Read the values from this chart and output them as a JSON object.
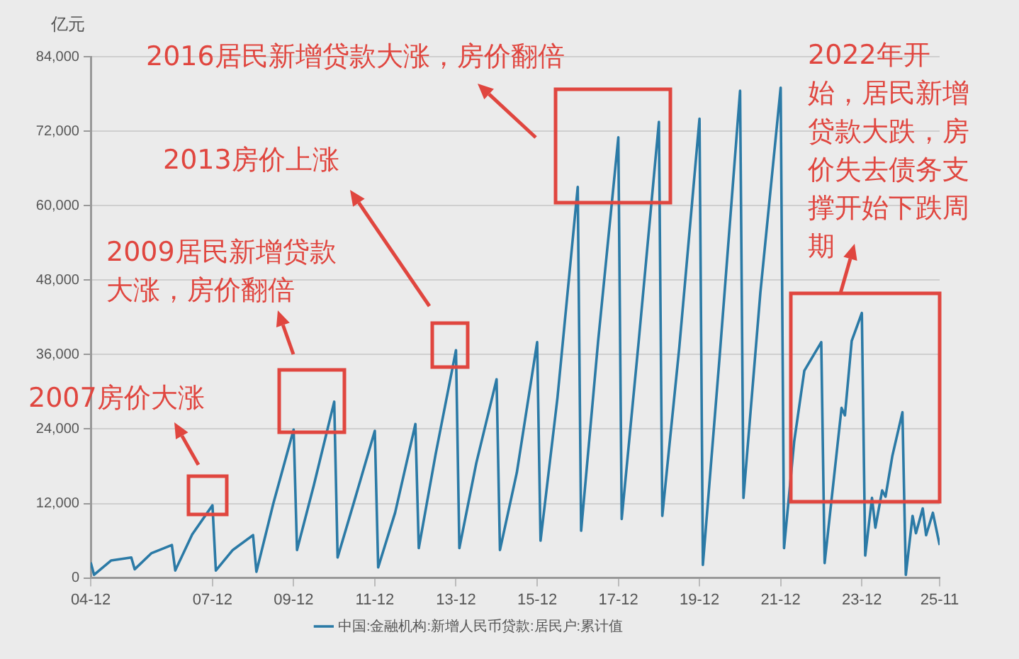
{
  "chart_data": {
    "type": "line",
    "ylabel": "亿元",
    "legend": "bottom",
    "grid": "y",
    "marker": "none",
    "line_style": "solid",
    "xlim": [
      "2004-12",
      "2025-11"
    ],
    "xticks": [
      {
        "value": "2004-12",
        "label": "04-12"
      },
      {
        "value": "2007-12",
        "label": "07-12"
      },
      {
        "value": "2009-12",
        "label": "09-12"
      },
      {
        "value": "2011-12",
        "label": "11-12"
      },
      {
        "value": "2013-12",
        "label": "13-12"
      },
      {
        "value": "2015-12",
        "label": "15-12"
      },
      {
        "value": "2017-12",
        "label": "17-12"
      },
      {
        "value": "2019-12",
        "label": "19-12"
      },
      {
        "value": "2021-12",
        "label": "21-12"
      },
      {
        "value": "2023-12",
        "label": "23-12"
      },
      {
        "value": "2025-11",
        "label": "25-11"
      }
    ],
    "ylim": [
      0,
      84000
    ],
    "yticks": [
      0,
      {
        "value": 12000,
        "label": "12,000"
      },
      {
        "value": 24000,
        "label": "24,000"
      },
      {
        "value": 36000,
        "label": "36,000"
      },
      {
        "value": 48000,
        "label": "48,000"
      },
      {
        "value": 60000,
        "label": "60,000"
      },
      {
        "value": 72000,
        "label": "72,000"
      },
      {
        "value": 84000,
        "label": "84,000"
      }
    ],
    "x": [
      "2004-12",
      "2005-01",
      "2005-06",
      "2005-12",
      "2006-01",
      "2006-06",
      "2006-12",
      "2007-01",
      "2007-06",
      "2007-12",
      "2008-01",
      "2008-06",
      "2008-12",
      "2009-01",
      "2009-06",
      "2009-12",
      "2010-01",
      "2010-06",
      "2010-12",
      "2011-01",
      "2011-06",
      "2011-12",
      "2012-01",
      "2012-06",
      "2012-12",
      "2013-01",
      "2013-06",
      "2013-12",
      "2014-01",
      "2014-06",
      "2014-12",
      "2015-01",
      "2015-06",
      "2015-12",
      "2016-01",
      "2016-06",
      "2016-12",
      "2017-01",
      "2017-06",
      "2017-12",
      "2018-01",
      "2018-06",
      "2018-12",
      "2019-01",
      "2019-06",
      "2019-12",
      "2020-01",
      "2020-06",
      "2020-12",
      "2021-01",
      "2021-06",
      "2021-12",
      "2022-01",
      "2022-04",
      "2022-07",
      "2022-12",
      "2023-01",
      "2023-06",
      "2023-07",
      "2023-09",
      "2023-12",
      "2024-01",
      "2024-03",
      "2024-04",
      "2024-06",
      "2024-07",
      "2024-09",
      "2024-12",
      "2025-01",
      "2025-03",
      "2025-04",
      "2025-06",
      "2025-07",
      "2025-09",
      "2025-11"
    ],
    "series": [
      {
        "name": "中国:金融机构:新增人民币贷款:居民户:累计值",
        "color": "#2b7aa6",
        "values": [
          2500,
          500,
          2800,
          3300,
          1400,
          4000,
          5300,
          1200,
          7000,
          11700,
          1200,
          4500,
          6900,
          1000,
          12000,
          23900,
          4500,
          15000,
          28400,
          3300,
          12500,
          23700,
          1700,
          10500,
          24800,
          4800,
          20000,
          36700,
          4800,
          18500,
          32000,
          4500,
          17000,
          38000,
          6000,
          29000,
          63000,
          7600,
          38000,
          71000,
          9500,
          38000,
          73500,
          10000,
          37000,
          74000,
          2100,
          36000,
          78500,
          12900,
          46000,
          79000,
          4800,
          22000,
          33400,
          38000,
          2400,
          27400,
          26200,
          38200,
          42700,
          3600,
          12900,
          8100,
          14100,
          13100,
          19600,
          26700,
          500,
          10000,
          7200,
          11200,
          6900,
          10500,
          5300
        ]
      }
    ],
    "annotations": [
      "2016居民新增贷款大涨，房价翻倍",
      "2013房价上涨",
      "2009居民新增贷款大涨，房价翻倍",
      "2007房价大涨",
      "2022年开始，居民新增贷款大跌，房价失去债务支撑开始下跌周期"
    ]
  }
}
